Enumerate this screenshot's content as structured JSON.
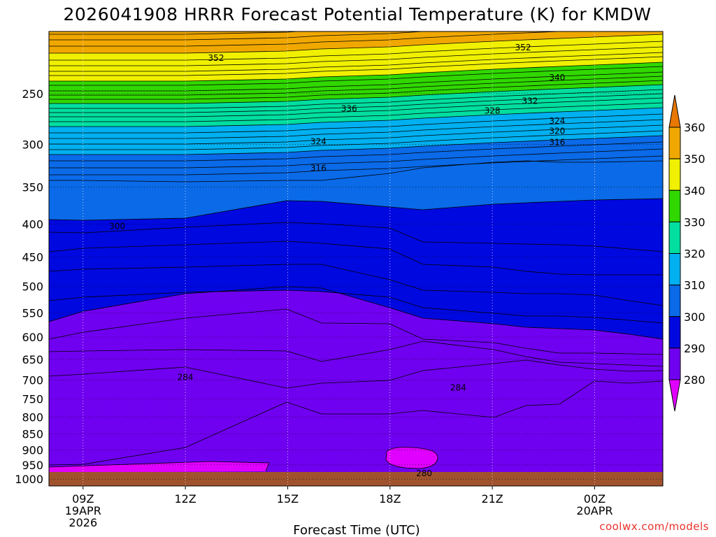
{
  "chart_data": {
    "type": "contour",
    "title": "2026041908 HRRR Forecast Potential Temperature (K) for KMDW",
    "xlabel": "Forecast Time (UTC)",
    "ylabel": "",
    "credit": "coolwx.com/models",
    "x_ticks": [
      {
        "hour": 9,
        "lines": [
          "09Z",
          "19APR",
          "2026"
        ]
      },
      {
        "hour": 12,
        "lines": [
          "12Z"
        ]
      },
      {
        "hour": 15,
        "lines": [
          "15Z"
        ]
      },
      {
        "hour": 18,
        "lines": [
          "18Z"
        ]
      },
      {
        "hour": 21,
        "lines": [
          "21Z"
        ]
      },
      {
        "hour": 24,
        "lines": [
          "00Z",
          "20APR"
        ]
      }
    ],
    "x_range_hours": [
      8,
      26
    ],
    "y_axis": "pressure (hPa), log scale, inverted",
    "y_ticks": [
      250,
      300,
      350,
      400,
      450,
      500,
      550,
      600,
      650,
      700,
      750,
      800,
      850,
      900,
      950,
      1000
    ],
    "y_range": [
      200,
      1025
    ],
    "colorbar": {
      "levels": [
        280,
        290,
        300,
        310,
        320,
        330,
        340,
        350,
        360
      ],
      "colors": [
        "#e000ff",
        "#7000f0",
        "#0008e0",
        "#0a6ae8",
        "#00b0f0",
        "#00dea0",
        "#30d800",
        "#f0f000",
        "#f0a800",
        "#e87800"
      ]
    },
    "contour_labels": [
      {
        "text": "352",
        "hour": 21.9,
        "p": 212
      },
      {
        "text": "352",
        "hour": 12.9,
        "p": 220
      },
      {
        "text": "340",
        "hour": 22.9,
        "p": 236
      },
      {
        "text": "332",
        "hour": 22.1,
        "p": 257
      },
      {
        "text": "336",
        "hour": 16.8,
        "p": 264
      },
      {
        "text": "328",
        "hour": 21.0,
        "p": 266
      },
      {
        "text": "324",
        "hour": 22.9,
        "p": 276
      },
      {
        "text": "320",
        "hour": 22.9,
        "p": 286
      },
      {
        "text": "324",
        "hour": 15.9,
        "p": 297
      },
      {
        "text": "316",
        "hour": 22.9,
        "p": 298
      },
      {
        "text": "316",
        "hour": 15.9,
        "p": 327
      },
      {
        "text": "300",
        "hour": 10.0,
        "p": 403
      },
      {
        "text": "284",
        "hour": 12.0,
        "p": 693
      },
      {
        "text": "284",
        "hour": 20.0,
        "p": 720
      },
      {
        "text": "280",
        "hour": 19.0,
        "p": 980
      }
    ]
  }
}
